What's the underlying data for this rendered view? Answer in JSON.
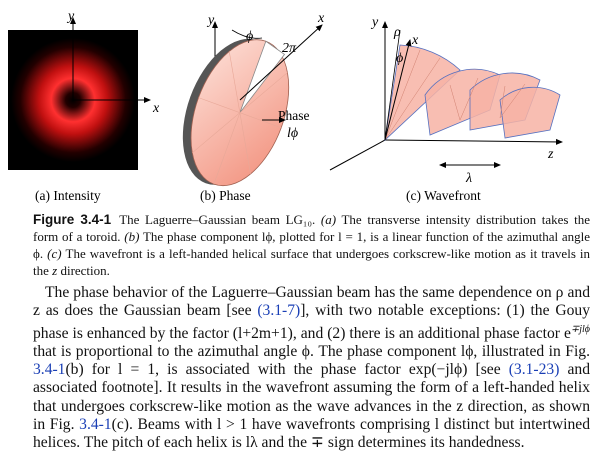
{
  "figure": {
    "panels": [
      {
        "label": "(a) Intensity",
        "annotations": [
          "y",
          "x"
        ]
      },
      {
        "label": "(b) Phase",
        "annotations": [
          "y",
          "x",
          "ϕ",
          "2π",
          "Phase",
          "lϕ"
        ]
      },
      {
        "label": "(c) Wavefront",
        "annotations": [
          "y",
          "ρ",
          "x",
          "ϕ",
          "z",
          "λ"
        ]
      }
    ],
    "caption": {
      "number": "Figure 3.4-1",
      "segments": [
        {
          "text": "The Laguerre–Gaussian beam LG₁₀. "
        },
        {
          "text": "(a)",
          "style": "math"
        },
        {
          "text": " The transverse intensity distribution takes the form of a toroid. "
        },
        {
          "text": "(b)",
          "style": "math"
        },
        {
          "text": " The phase component lϕ, plotted for l = 1, is a linear function of the azimuthal angle ϕ. "
        },
        {
          "text": "(c)",
          "style": "math"
        },
        {
          "text": " The wavefront is a left-handed helical surface that undergoes corkscrew-like motion as it travels in the "
        },
        {
          "text": "z",
          "style": "math"
        },
        {
          "text": " direction."
        }
      ]
    }
  },
  "body": {
    "segments": [
      {
        "text": "The phase behavior of the Laguerre–Gaussian beam has the same dependence on ρ and z as does the Gaussian beam [see "
      },
      {
        "text": "(3.1-7)",
        "style": "link"
      },
      {
        "text": "], with two notable exceptions: (1) the Gouy phase is enhanced by the factor (l+2m+1), and (2) there is an additional phase factor e"
      },
      {
        "text": "∓jlϕ",
        "style": "sup"
      },
      {
        "text": " that is proportional to the azimuthal angle ϕ. The phase component lϕ, illustrated in Fig. "
      },
      {
        "text": "3.4-1",
        "style": "link"
      },
      {
        "text": "(b) for l = 1, is associated with the phase factor exp(−jlϕ) [see "
      },
      {
        "text": "(3.1-23)",
        "style": "link"
      },
      {
        "text": " and associated footnote]. It results in the wavefront assuming the form of a left-handed helix that undergoes corkscrew-like motion as the wave advances in the z direction, as shown in Fig. "
      },
      {
        "text": "3.4-1",
        "style": "link"
      },
      {
        "text": "(c). Beams with l > 1 have wavefronts comprising l distinct but intertwined helices. The pitch of each helix is lλ and the ∓ sign determines its handedness."
      }
    ]
  }
}
